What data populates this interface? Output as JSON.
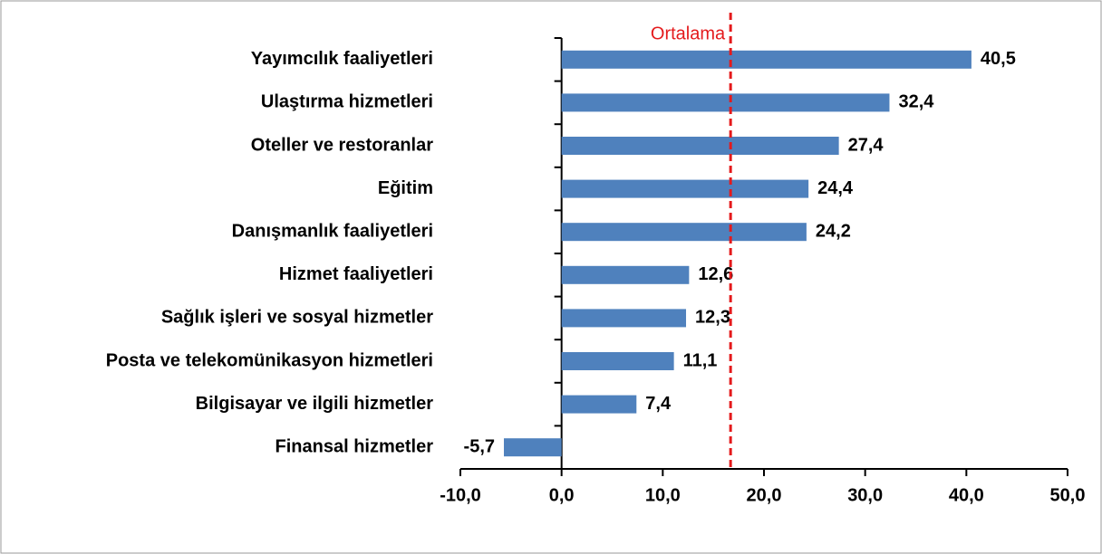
{
  "chart_data": {
    "type": "barh",
    "categories": [
      "Yayımcılık faaliyetleri",
      "Ulaştırma hizmetleri",
      "Oteller ve restoranlar",
      "Eğitim",
      "Danışmanlık faaliyetleri",
      "Hizmet faaliyetleri",
      "Sağlık işleri ve sosyal hizmetler",
      "Posta ve telekomünikasyon hizmetleri",
      "Bilgisayar ve ilgili hizmetler",
      "Finansal hizmetler"
    ],
    "values": [
      40.5,
      32.4,
      27.4,
      24.4,
      24.2,
      12.6,
      12.3,
      11.1,
      7.4,
      -5.7
    ],
    "value_labels": [
      "40,5",
      "32,4",
      "27,4",
      "24,4",
      "24,2",
      "12,6",
      "12,3",
      "11,1",
      "7,4",
      "-5,7"
    ],
    "color": "#4f81bd",
    "xlim": [
      -10,
      50
    ],
    "xticks": [
      {
        "value": -10,
        "label": "-10,0"
      },
      {
        "value": 0,
        "label": "0,0"
      },
      {
        "value": 10,
        "label": "10,0"
      },
      {
        "value": 20,
        "label": "20,0"
      },
      {
        "value": 30,
        "label": "30,0"
      },
      {
        "value": 40,
        "label": "40,0"
      },
      {
        "value": 50,
        "label": "50,0"
      }
    ],
    "reference_line": {
      "label": "Ortalama",
      "value": 16.7,
      "color": "#e41a1c"
    }
  }
}
